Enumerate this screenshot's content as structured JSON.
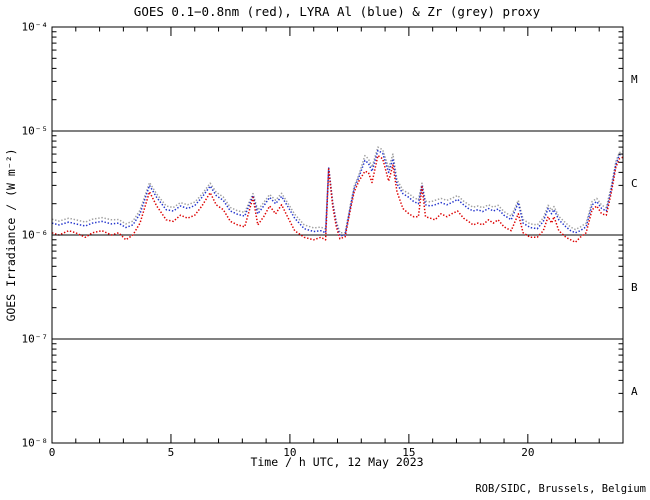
{
  "window": {
    "background": "#ffffff",
    "frame_color": "#000000"
  },
  "credit": "ROB/SIDC, Brussels, Belgium",
  "chart_data": {
    "type": "line",
    "title": "GOES 0.1−0.8nm (red), LYRA Al (blue) & Zr (grey) proxy",
    "xlabel": "Time / h UTC, 12 May 2023",
    "ylabel": "GOES Irradiance / (W m⁻²)",
    "grid": false,
    "legend_position": "none (series colors named in title)",
    "x_range_hours": [
      0,
      24
    ],
    "x_major_ticks": [
      0,
      5,
      10,
      15,
      20
    ],
    "x_minor_tick_step_hours": 1,
    "y_scale": "log",
    "y_range_w_m2": [
      1e-08,
      0.0001
    ],
    "y_decade_labels": [
      {
        "exponent": -4,
        "label": "10⁻⁴"
      },
      {
        "exponent": -5,
        "label": "10⁻⁵"
      },
      {
        "exponent": -6,
        "label": "10⁻⁶"
      },
      {
        "exponent": -7,
        "label": "10⁻⁷"
      },
      {
        "exponent": -8,
        "label": "10⁻⁸"
      }
    ],
    "class_boundary_lines_w_m2": [
      1e-05,
      1e-06,
      1e-07
    ],
    "flare_classes": [
      {
        "label": "M",
        "band_w_m2": [
          1e-05,
          0.0001
        ]
      },
      {
        "label": "C",
        "band_w_m2": [
          1e-06,
          1e-05
        ]
      },
      {
        "label": "B",
        "band_w_m2": [
          1e-07,
          1e-06
        ]
      },
      {
        "label": "A",
        "band_w_m2": [
          1e-08,
          1e-07
        ]
      }
    ],
    "value_unit": "1e-6 W m^-2",
    "sample_times_h": [
      0.0,
      0.3,
      0.7,
      1.0,
      1.4,
      1.7,
      2.1,
      2.5,
      2.8,
      3.1,
      3.4,
      3.7,
      4.1,
      4.4,
      4.8,
      5.1,
      5.4,
      5.7,
      6.0,
      6.3,
      6.65,
      6.9,
      7.2,
      7.5,
      7.8,
      8.1,
      8.45,
      8.65,
      8.9,
      9.15,
      9.4,
      9.65,
      9.9,
      10.2,
      10.6,
      11.0,
      11.3,
      11.5,
      11.63,
      11.8,
      11.95,
      12.1,
      12.32,
      12.55,
      12.7,
      12.9,
      13.15,
      13.3,
      13.45,
      13.7,
      13.9,
      14.15,
      14.33,
      14.5,
      14.75,
      15.0,
      15.2,
      15.4,
      15.55,
      15.7,
      15.9,
      16.1,
      16.35,
      16.6,
      16.8,
      17.05,
      17.3,
      17.5,
      17.7,
      17.9,
      18.1,
      18.35,
      18.55,
      18.75,
      19.0,
      19.3,
      19.6,
      19.8,
      20.1,
      20.4,
      20.65,
      20.85,
      21.0,
      21.1,
      21.3,
      21.6,
      21.8,
      22.0,
      22.2,
      22.45,
      22.7,
      22.9,
      23.1,
      23.3,
      23.5,
      23.7,
      23.85,
      24.0
    ],
    "series": [
      {
        "name": "GOES 0.1-0.8nm",
        "color_name": "red",
        "color": "#dd0000",
        "values_1e6": [
          1.05,
          1.0,
          1.1,
          1.05,
          0.95,
          1.05,
          1.1,
          1.0,
          1.05,
          0.9,
          1.0,
          1.3,
          2.6,
          1.9,
          1.4,
          1.35,
          1.55,
          1.45,
          1.55,
          1.9,
          2.55,
          1.95,
          1.75,
          1.35,
          1.25,
          1.2,
          2.3,
          1.25,
          1.5,
          1.9,
          1.6,
          1.95,
          1.5,
          1.1,
          0.95,
          0.9,
          0.95,
          0.9,
          4.3,
          1.9,
          1.2,
          0.92,
          0.96,
          1.8,
          2.6,
          3.3,
          4.1,
          4.0,
          3.2,
          5.8,
          5.4,
          3.3,
          4.7,
          2.6,
          1.8,
          1.6,
          1.5,
          1.5,
          2.9,
          1.5,
          1.45,
          1.4,
          1.6,
          1.5,
          1.6,
          1.7,
          1.45,
          1.35,
          1.25,
          1.3,
          1.25,
          1.4,
          1.3,
          1.4,
          1.2,
          1.1,
          1.6,
          1.05,
          0.95,
          0.95,
          1.1,
          1.5,
          1.3,
          1.5,
          1.1,
          0.95,
          0.9,
          0.85,
          0.95,
          1.05,
          1.75,
          1.9,
          1.6,
          1.55,
          2.5,
          4.5,
          5.4,
          5.6
        ]
      },
      {
        "name": "LYRA Al proxy",
        "color_name": "blue",
        "color": "#2233cc",
        "values_1e6": [
          1.3,
          1.25,
          1.33,
          1.28,
          1.22,
          1.3,
          1.35,
          1.28,
          1.3,
          1.18,
          1.25,
          1.6,
          3.0,
          2.3,
          1.75,
          1.7,
          1.9,
          1.8,
          1.92,
          2.3,
          2.95,
          2.4,
          2.15,
          1.7,
          1.58,
          1.52,
          2.4,
          1.6,
          1.9,
          2.3,
          2.0,
          2.35,
          1.9,
          1.45,
          1.15,
          1.08,
          1.1,
          1.05,
          4.4,
          2.0,
          1.28,
          0.98,
          1.0,
          1.9,
          2.8,
          3.6,
          5.2,
          4.9,
          4.1,
          6.5,
          6.1,
          4.0,
          5.4,
          3.1,
          2.5,
          2.3,
          2.1,
          2.0,
          3.0,
          1.95,
          1.9,
          1.95,
          2.05,
          1.95,
          2.05,
          2.2,
          1.95,
          1.8,
          1.7,
          1.75,
          1.68,
          1.8,
          1.7,
          1.78,
          1.55,
          1.4,
          2.05,
          1.3,
          1.18,
          1.15,
          1.35,
          1.8,
          1.6,
          1.75,
          1.4,
          1.2,
          1.1,
          1.05,
          1.1,
          1.2,
          1.95,
          2.1,
          1.8,
          1.7,
          2.7,
          4.8,
          5.9,
          6.0
        ]
      },
      {
        "name": "LYRA Zr proxy",
        "color_name": "grey",
        "color": "#a0a0a0",
        "values_1e6": [
          1.42,
          1.36,
          1.45,
          1.4,
          1.33,
          1.42,
          1.47,
          1.4,
          1.41,
          1.28,
          1.36,
          1.73,
          3.2,
          2.48,
          1.9,
          1.84,
          2.05,
          1.95,
          2.07,
          2.46,
          3.15,
          2.58,
          2.32,
          1.84,
          1.71,
          1.65,
          2.5,
          1.73,
          2.05,
          2.45,
          2.16,
          2.52,
          2.05,
          1.58,
          1.25,
          1.17,
          1.19,
          1.14,
          4.5,
          2.1,
          1.35,
          1.05,
          1.05,
          2.0,
          2.95,
          3.8,
          5.8,
          5.4,
          4.5,
          7.0,
          6.6,
          4.4,
          6.0,
          3.4,
          2.7,
          2.5,
          2.3,
          2.18,
          3.15,
          2.12,
          2.08,
          2.15,
          2.25,
          2.15,
          2.25,
          2.4,
          2.12,
          1.97,
          1.85,
          1.9,
          1.83,
          1.95,
          1.85,
          1.93,
          1.68,
          1.52,
          2.15,
          1.41,
          1.28,
          1.25,
          1.46,
          1.93,
          1.73,
          1.88,
          1.51,
          1.3,
          1.19,
          1.13,
          1.19,
          1.3,
          2.1,
          2.25,
          1.94,
          1.83,
          2.9,
          5.1,
          6.2,
          6.4
        ]
      }
    ]
  }
}
